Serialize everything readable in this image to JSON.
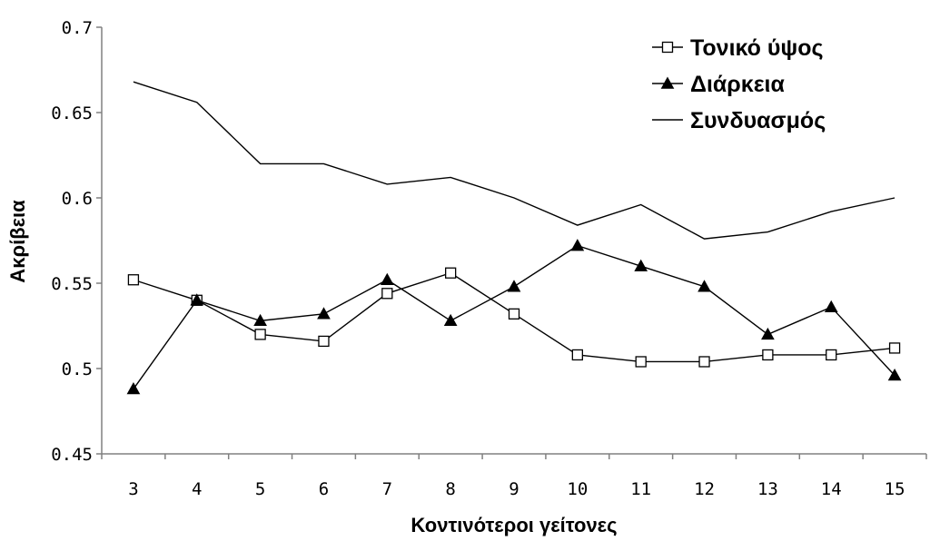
{
  "chart_data": {
    "type": "line",
    "xlabel": "Κοντινότεροι γείτονες",
    "ylabel": "Ακρίβεια",
    "categories": [
      "3",
      "4",
      "5",
      "6",
      "7",
      "8",
      "9",
      "10",
      "11",
      "12",
      "13",
      "14",
      "15"
    ],
    "ylim": [
      0.45,
      0.7
    ],
    "yticks": [
      "0.45",
      "0.5",
      "0.55",
      "0.6",
      "0.65",
      "0.7"
    ],
    "yticks_values": [
      0.45,
      0.5,
      0.55,
      0.6,
      0.65,
      0.7
    ],
    "grid": false,
    "legend_position": "top-right",
    "series": [
      {
        "name": "Τονικό ύψος",
        "marker": "square-open",
        "values": [
          0.552,
          0.54,
          0.52,
          0.516,
          0.544,
          0.556,
          0.532,
          0.508,
          0.504,
          0.504,
          0.508,
          0.508,
          0.512
        ]
      },
      {
        "name": "Διάρκεια",
        "marker": "triangle-filled",
        "values": [
          0.488,
          0.54,
          0.528,
          0.532,
          0.552,
          0.528,
          0.548,
          0.572,
          0.56,
          0.548,
          0.52,
          0.536,
          0.496
        ]
      },
      {
        "name": "Συνδυασμός",
        "marker": "none",
        "values": [
          0.668,
          0.656,
          0.62,
          0.62,
          0.608,
          0.612,
          0.6,
          0.584,
          0.596,
          0.576,
          0.58,
          0.592,
          0.6
        ]
      }
    ]
  }
}
